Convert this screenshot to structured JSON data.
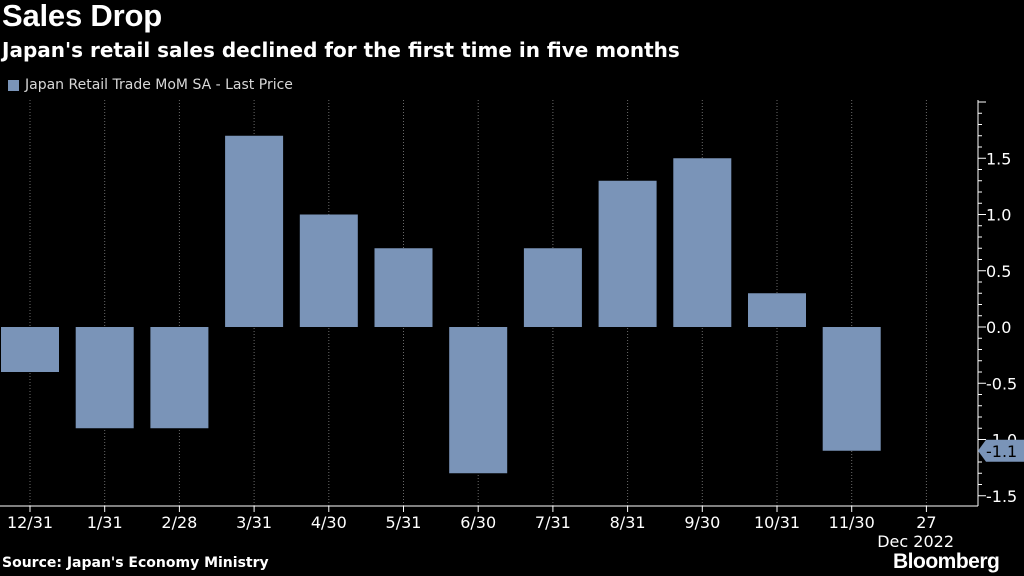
{
  "header": {
    "title": "Sales Drop",
    "subtitle": "Japan's retail sales declined for the first time in five months"
  },
  "footer": {
    "source": "Source: Japan's Economy Ministry",
    "brand": "Bloomberg"
  },
  "colors": {
    "bar": "#7a94b8",
    "grid": "#6a6a6a",
    "axis": "#ffffff",
    "label_bg": "#7a94b8"
  },
  "chart_data": {
    "type": "bar",
    "title": "Sales Drop",
    "series": [
      {
        "name": "Japan Retail Trade MoM SA - Last Price",
        "values": [
          -0.4,
          -0.9,
          -0.9,
          1.7,
          1.0,
          0.7,
          -1.3,
          0.7,
          1.3,
          1.5,
          0.3,
          -1.1
        ]
      }
    ],
    "categories": [
      "12/31",
      "1/31",
      "2/28",
      "3/31",
      "4/30",
      "5/31",
      "6/30",
      "7/31",
      "8/31",
      "9/30",
      "10/31",
      "11/30"
    ],
    "x_tick_labels": [
      "12/31",
      "1/31",
      "2/28",
      "3/31",
      "4/30",
      "5/31",
      "6/30",
      "7/31",
      "8/31",
      "9/30",
      "10/31",
      "11/30",
      "27"
    ],
    "x_sublabel": "Dec 2022",
    "ylim": [
      -1.5,
      2.0
    ],
    "y_ticks": [
      -1.5,
      -1.0,
      -0.5,
      0.0,
      0.5,
      1.0,
      1.5
    ],
    "y_tick_labels": [
      "-1.5",
      "-1.0",
      "-0.5",
      "0.0",
      "0.5",
      "1.0",
      "1.5"
    ],
    "y_axis_position": "right",
    "last_value_label": "-1.1",
    "grid": "vertical-dotted",
    "legend": "top-left",
    "xlabel": "",
    "ylabel": ""
  }
}
